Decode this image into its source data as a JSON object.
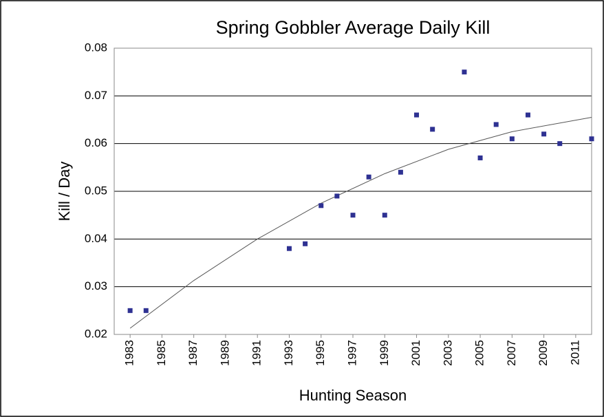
{
  "chart_data": {
    "type": "scatter",
    "title": "Spring Gobbler Average Daily Kill",
    "xlabel": "Hunting Season",
    "ylabel": "Kill / Day",
    "x": [
      1983,
      1984,
      1993,
      1994,
      1995,
      1996,
      1997,
      1998,
      1999,
      2000,
      2001,
      2002,
      2004,
      2005,
      2006,
      2007,
      2008,
      2009,
      2010,
      2012
    ],
    "values": [
      0.025,
      0.025,
      0.038,
      0.039,
      0.047,
      0.049,
      0.045,
      0.053,
      0.045,
      0.054,
      0.066,
      0.063,
      0.075,
      0.057,
      0.064,
      0.061,
      0.066,
      0.062,
      0.06,
      0.061
    ],
    "color": "#2e3192",
    "trend": {
      "x": [
        1983,
        1987,
        1991,
        1995,
        1999,
        2003,
        2007,
        2012
      ],
      "values": [
        0.0213,
        0.0313,
        0.04,
        0.0475,
        0.0537,
        0.0588,
        0.0625,
        0.0655
      ],
      "color": "#555555"
    },
    "xlim": [
      1982,
      2012
    ],
    "xticks": [
      1983,
      1985,
      1987,
      1989,
      1991,
      1993,
      1995,
      1997,
      1999,
      2001,
      2003,
      2005,
      2007,
      2009,
      2011
    ],
    "ylim": [
      0.02,
      0.08
    ],
    "yticks": [
      0.02,
      0.03,
      0.04,
      0.05,
      0.06,
      0.07,
      0.08
    ],
    "grid": true
  }
}
